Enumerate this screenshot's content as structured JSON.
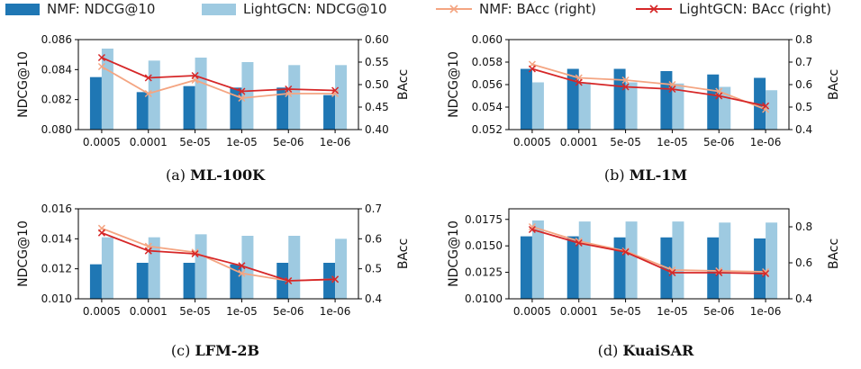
{
  "colors": {
    "nmf_bar": "#1f77b4",
    "lightgcn_bar": "#9ecae1",
    "nmf_line": "#f4a582",
    "lightgcn_line": "#d62728"
  },
  "legend": [
    {
      "label": "NMF: NDCG@10",
      "kind": "bar",
      "color": "#1f77b4"
    },
    {
      "label": "LightGCN: NDCG@10",
      "kind": "bar",
      "color": "#9ecae1"
    },
    {
      "label": "NMF: BAcc (right)",
      "kind": "line",
      "color": "#f4a582"
    },
    {
      "label": "LightGCN: BAcc (right)",
      "kind": "line",
      "color": "#d62728"
    }
  ],
  "chart_data": [
    {
      "type": "bar+line",
      "caption_letter": "(a)",
      "caption_name": "ML-100K",
      "categories": [
        "0.0005",
        "0.0001",
        "5e-05",
        "1e-05",
        "5e-06",
        "1e-06"
      ],
      "ylabel": "NDCG@10",
      "ylabel_right": "BAcc",
      "ylim": [
        0.08,
        0.086
      ],
      "yticks": [
        "0.080",
        "0.082",
        "0.084",
        "0.086"
      ],
      "ylim_right": [
        0.4,
        0.6
      ],
      "yticks_right": [
        "0.40",
        "0.45",
        "0.50",
        "0.55",
        "0.60"
      ],
      "bars": [
        {
          "name": "NMF: NDCG@10",
          "values": [
            0.0835,
            0.0825,
            0.0829,
            0.0828,
            0.0828,
            0.0823
          ]
        },
        {
          "name": "LightGCN: NDCG@10",
          "values": [
            0.0854,
            0.0846,
            0.0848,
            0.0845,
            0.0843,
            0.0843
          ]
        }
      ],
      "lines": [
        {
          "name": "NMF: BAcc (right)",
          "values": [
            0.54,
            0.48,
            0.51,
            0.47,
            0.48,
            0.48
          ]
        },
        {
          "name": "LightGCN: BAcc (right)",
          "values": [
            0.56,
            0.515,
            0.52,
            0.485,
            0.49,
            0.487
          ]
        }
      ]
    },
    {
      "type": "bar+line",
      "caption_letter": "(b)",
      "caption_name": "ML-1M",
      "categories": [
        "0.0005",
        "0.0001",
        "5e-05",
        "1e-05",
        "5e-06",
        "1e-06"
      ],
      "ylabel": "NDCG@10",
      "ylabel_right": "BAcc",
      "ylim": [
        0.052,
        0.06
      ],
      "yticks": [
        "0.052",
        "0.054",
        "0.056",
        "0.058",
        "0.060"
      ],
      "ylim_right": [
        0.4,
        0.8
      ],
      "yticks_right": [
        "0.4",
        "0.5",
        "0.6",
        "0.7",
        "0.8"
      ],
      "bars": [
        {
          "name": "NMF: NDCG@10",
          "values": [
            0.0574,
            0.0574,
            0.0574,
            0.0572,
            0.0569,
            0.0566
          ]
        },
        {
          "name": "LightGCN: NDCG@10",
          "values": [
            0.0562,
            0.0562,
            0.0562,
            0.0561,
            0.0558,
            0.0555
          ]
        }
      ],
      "lines": [
        {
          "name": "NMF: BAcc (right)",
          "values": [
            0.69,
            0.63,
            0.62,
            0.6,
            0.57,
            0.49
          ]
        },
        {
          "name": "LightGCN: BAcc (right)",
          "values": [
            0.67,
            0.61,
            0.59,
            0.58,
            0.55,
            0.505
          ]
        }
      ]
    },
    {
      "type": "bar+line",
      "caption_letter": "(c)",
      "caption_name": "LFM-2B",
      "categories": [
        "0.0005",
        "0.0001",
        "5e-05",
        "1e-05",
        "5e-06",
        "1e-06"
      ],
      "ylabel": "NDCG@10",
      "ylabel_right": "BAcc",
      "ylim": [
        0.01,
        0.016
      ],
      "yticks": [
        "0.010",
        "0.012",
        "0.014",
        "0.016"
      ],
      "ylim_right": [
        0.4,
        0.7
      ],
      "yticks_right": [
        "0.4",
        "0.5",
        "0.6",
        "0.7"
      ],
      "bars": [
        {
          "name": "NMF: NDCG@10",
          "values": [
            0.0123,
            0.0124,
            0.0124,
            0.0123,
            0.0124,
            0.0124
          ]
        },
        {
          "name": "LightGCN: NDCG@10",
          "values": [
            0.0141,
            0.0141,
            0.0143,
            0.0142,
            0.0142,
            0.014
          ]
        }
      ],
      "lines": [
        {
          "name": "NMF: BAcc (right)",
          "values": [
            0.635,
            0.575,
            0.555,
            0.485,
            0.46,
            0.465
          ]
        },
        {
          "name": "LightGCN: BAcc (right)",
          "values": [
            0.62,
            0.56,
            0.55,
            0.51,
            0.46,
            0.465
          ]
        }
      ]
    },
    {
      "type": "bar+line",
      "caption_letter": "(d)",
      "caption_name": "KuaiSAR",
      "categories": [
        "0.0005",
        "0.0001",
        "5e-05",
        "1e-05",
        "5e-06",
        "1e-06"
      ],
      "ylabel": "NDCG@10",
      "ylabel_right": "BAcc",
      "ylim": [
        0.01,
        0.0185
      ],
      "yticks": [
        "0.0100",
        "0.0125",
        "0.0150",
        "0.0175"
      ],
      "ylim_right": [
        0.4,
        0.9
      ],
      "yticks_right": [
        "0.4",
        "0.6",
        "0.8"
      ],
      "bars": [
        {
          "name": "NMF: NDCG@10",
          "values": [
            0.0159,
            0.0159,
            0.0158,
            0.0158,
            0.0158,
            0.0157
          ]
        },
        {
          "name": "LightGCN: NDCG@10",
          "values": [
            0.0174,
            0.0173,
            0.0173,
            0.0173,
            0.0172,
            0.0172
          ]
        }
      ],
      "lines": [
        {
          "name": "NMF: BAcc (right)",
          "values": [
            0.8,
            0.72,
            0.665,
            0.56,
            0.555,
            0.55
          ]
        },
        {
          "name": "LightGCN: BAcc (right)",
          "values": [
            0.785,
            0.71,
            0.66,
            0.545,
            0.545,
            0.54
          ]
        }
      ]
    }
  ]
}
